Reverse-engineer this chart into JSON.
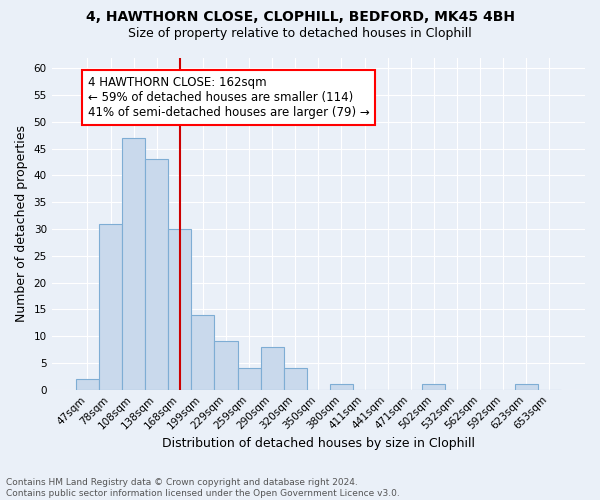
{
  "title_line1": "4, HAWTHORN CLOSE, CLOPHILL, BEDFORD, MK45 4BH",
  "title_line2": "Size of property relative to detached houses in Clophill",
  "xlabel": "Distribution of detached houses by size in Clophill",
  "ylabel": "Number of detached properties",
  "bin_labels": [
    "47sqm",
    "78sqm",
    "108sqm",
    "138sqm",
    "168sqm",
    "199sqm",
    "229sqm",
    "259sqm",
    "290sqm",
    "320sqm",
    "350sqm",
    "380sqm",
    "411sqm",
    "441sqm",
    "471sqm",
    "502sqm",
    "532sqm",
    "562sqm",
    "592sqm",
    "623sqm",
    "653sqm"
  ],
  "bar_heights": [
    2,
    31,
    47,
    43,
    30,
    14,
    9,
    4,
    8,
    4,
    0,
    1,
    0,
    0,
    0,
    1,
    0,
    0,
    0,
    1,
    0
  ],
  "bar_color": "#c9d9ec",
  "bar_edge_color": "#7eadd4",
  "vline_x": 4,
  "vline_color": "#cc0000",
  "annotation_line1": "4 HAWTHORN CLOSE: 162sqm",
  "annotation_line2": "← 59% of detached houses are smaller (114)",
  "annotation_line3": "41% of semi-detached houses are larger (79) →",
  "ylim": [
    0,
    62
  ],
  "yticks": [
    0,
    5,
    10,
    15,
    20,
    25,
    30,
    35,
    40,
    45,
    50,
    55,
    60
  ],
  "bg_color": "#eaf0f8",
  "grid_color": "#ffffff",
  "footnote": "Contains HM Land Registry data © Crown copyright and database right 2024.\nContains public sector information licensed under the Open Government Licence v3.0.",
  "title_fontsize": 10,
  "subtitle_fontsize": 9,
  "xlabel_fontsize": 9,
  "ylabel_fontsize": 9,
  "tick_fontsize": 7.5,
  "annot_fontsize": 8.5,
  "footnote_fontsize": 6.5
}
